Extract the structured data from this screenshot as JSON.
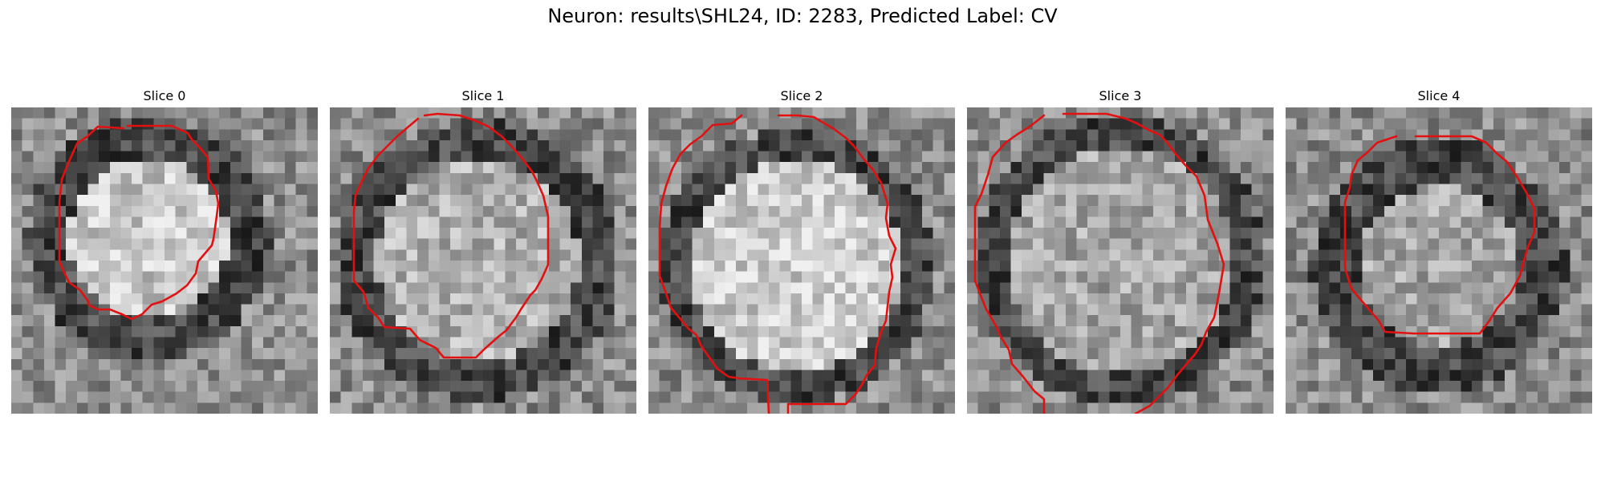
{
  "figure": {
    "title": "Neuron: results\\SHL24, ID: 2283, Predicted Label: CV"
  },
  "contour_color": "#e31010",
  "panels": [
    {
      "title": "Slice 0"
    },
    {
      "title": "Slice 1"
    },
    {
      "title": "Slice 2"
    },
    {
      "title": "Slice 3"
    },
    {
      "title": "Slice 4"
    }
  ]
}
